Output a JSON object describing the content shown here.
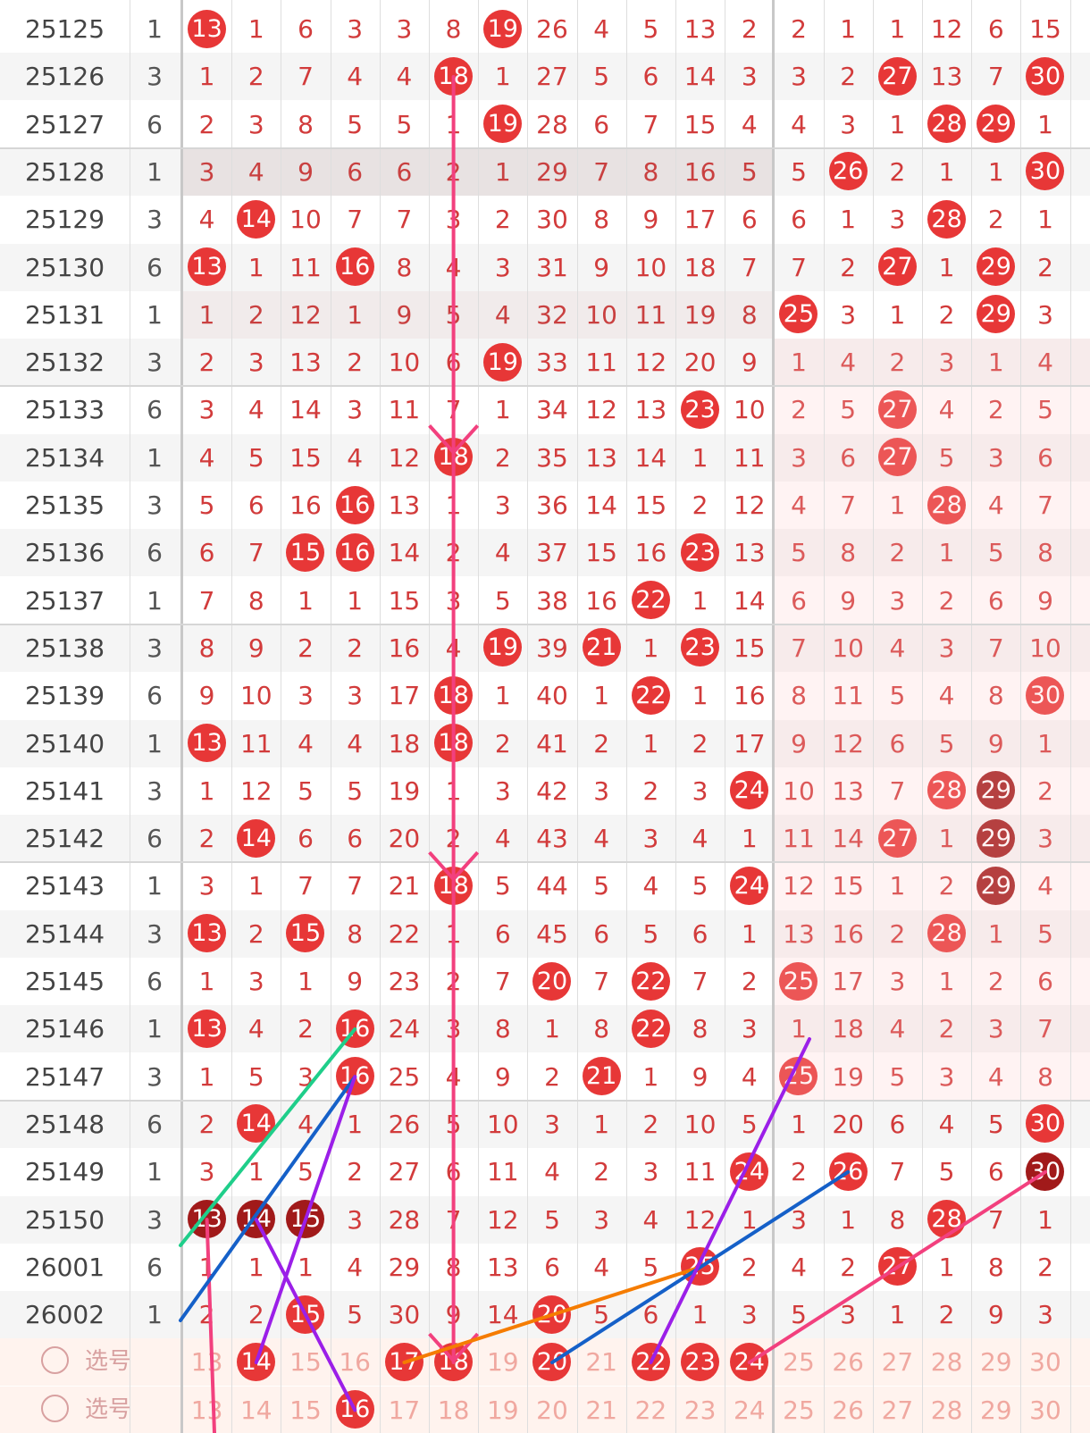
{
  "rows": [
    {
      "id": "25125",
      "group": "1",
      "cells": [
        "13",
        "1",
        "6",
        "3",
        "3",
        "8",
        "19",
        "26",
        "4",
        "5",
        "13",
        "2",
        "2",
        "1",
        "1",
        "12",
        "6",
        "15"
      ],
      "hits": [
        0,
        6
      ],
      "dark": []
    },
    {
      "id": "25126",
      "group": "3",
      "cells": [
        "1",
        "2",
        "7",
        "4",
        "4",
        "18",
        "1",
        "27",
        "5",
        "6",
        "14",
        "3",
        "3",
        "2",
        "27",
        "13",
        "7",
        "30"
      ],
      "hits": [
        5,
        14,
        17
      ],
      "dark": []
    },
    {
      "id": "25127",
      "group": "6",
      "cells": [
        "2",
        "3",
        "8",
        "5",
        "5",
        "1",
        "19",
        "28",
        "6",
        "7",
        "15",
        "4",
        "4",
        "3",
        "1",
        "28",
        "29",
        "1"
      ],
      "hits": [
        6,
        15,
        16
      ],
      "dark": []
    },
    {
      "id": "25128",
      "group": "1",
      "cells": [
        "3",
        "4",
        "9",
        "6",
        "6",
        "2",
        "1",
        "29",
        "7",
        "8",
        "16",
        "5",
        "5",
        "26",
        "2",
        "1",
        "1",
        "30"
      ],
      "hits": [
        13,
        17
      ],
      "dark": []
    },
    {
      "id": "25129",
      "group": "3",
      "cells": [
        "4",
        "14",
        "10",
        "7",
        "7",
        "3",
        "2",
        "30",
        "8",
        "9",
        "17",
        "6",
        "6",
        "1",
        "3",
        "28",
        "2",
        "1"
      ],
      "hits": [
        1,
        15
      ],
      "dark": []
    },
    {
      "id": "25130",
      "group": "6",
      "cells": [
        "13",
        "1",
        "11",
        "16",
        "8",
        "4",
        "3",
        "31",
        "9",
        "10",
        "18",
        "7",
        "7",
        "2",
        "27",
        "1",
        "29",
        "2"
      ],
      "hits": [
        0,
        3,
        14,
        16
      ],
      "dark": []
    },
    {
      "id": "25131",
      "group": "1",
      "cells": [
        "1",
        "2",
        "12",
        "1",
        "9",
        "5",
        "4",
        "32",
        "10",
        "11",
        "19",
        "8",
        "25",
        "3",
        "1",
        "2",
        "29",
        "3"
      ],
      "hits": [
        12,
        16
      ],
      "dark": []
    },
    {
      "id": "25132",
      "group": "3",
      "cells": [
        "2",
        "3",
        "13",
        "2",
        "10",
        "6",
        "19",
        "33",
        "11",
        "12",
        "20",
        "9",
        "1",
        "4",
        "2",
        "3",
        "1",
        "4"
      ],
      "hits": [
        6
      ],
      "dark": []
    },
    {
      "id": "25133",
      "group": "6",
      "cells": [
        "3",
        "4",
        "14",
        "3",
        "11",
        "7",
        "1",
        "34",
        "12",
        "13",
        "23",
        "10",
        "2",
        "5",
        "27",
        "4",
        "2",
        "5"
      ],
      "hits": [
        10,
        14
      ],
      "dark": []
    },
    {
      "id": "25134",
      "group": "1",
      "cells": [
        "4",
        "5",
        "15",
        "4",
        "12",
        "18",
        "2",
        "35",
        "13",
        "14",
        "1",
        "11",
        "3",
        "6",
        "27",
        "5",
        "3",
        "6"
      ],
      "hits": [
        5,
        14
      ],
      "dark": []
    },
    {
      "id": "25135",
      "group": "3",
      "cells": [
        "5",
        "6",
        "16",
        "16",
        "13",
        "1",
        "3",
        "36",
        "14",
        "15",
        "2",
        "12",
        "4",
        "7",
        "1",
        "28",
        "4",
        "7"
      ],
      "hits": [
        3,
        15
      ],
      "dark": []
    },
    {
      "id": "25136",
      "group": "6",
      "cells": [
        "6",
        "7",
        "15",
        "16",
        "14",
        "2",
        "4",
        "37",
        "15",
        "16",
        "23",
        "13",
        "5",
        "8",
        "2",
        "1",
        "5",
        "8"
      ],
      "hits": [
        2,
        3,
        10
      ],
      "dark": []
    },
    {
      "id": "25137",
      "group": "1",
      "cells": [
        "7",
        "8",
        "1",
        "1",
        "15",
        "3",
        "5",
        "38",
        "16",
        "22",
        "1",
        "14",
        "6",
        "9",
        "3",
        "2",
        "6",
        "9"
      ],
      "hits": [
        9
      ],
      "dark": []
    },
    {
      "id": "25138",
      "group": "3",
      "cells": [
        "8",
        "9",
        "2",
        "2",
        "16",
        "4",
        "19",
        "39",
        "21",
        "1",
        "23",
        "15",
        "7",
        "10",
        "4",
        "3",
        "7",
        "10"
      ],
      "hits": [
        6,
        8,
        10
      ],
      "dark": []
    },
    {
      "id": "25139",
      "group": "6",
      "cells": [
        "9",
        "10",
        "3",
        "3",
        "17",
        "18",
        "1",
        "40",
        "1",
        "22",
        "1",
        "16",
        "8",
        "11",
        "5",
        "4",
        "8",
        "30"
      ],
      "hits": [
        5,
        9,
        17
      ],
      "dark": []
    },
    {
      "id": "25140",
      "group": "1",
      "cells": [
        "13",
        "11",
        "4",
        "4",
        "18",
        "18",
        "2",
        "41",
        "2",
        "1",
        "2",
        "17",
        "9",
        "12",
        "6",
        "5",
        "9",
        "1"
      ],
      "hits": [
        0,
        5
      ],
      "dark": []
    },
    {
      "id": "25141",
      "group": "3",
      "cells": [
        "1",
        "12",
        "5",
        "5",
        "19",
        "1",
        "3",
        "42",
        "3",
        "2",
        "3",
        "24",
        "10",
        "13",
        "7",
        "28",
        "29",
        "2"
      ],
      "hits": [
        11,
        15,
        16
      ],
      "dark": [
        16
      ]
    },
    {
      "id": "25142",
      "group": "6",
      "cells": [
        "2",
        "14",
        "6",
        "6",
        "20",
        "2",
        "4",
        "43",
        "4",
        "3",
        "4",
        "1",
        "11",
        "14",
        "27",
        "1",
        "29",
        "3"
      ],
      "hits": [
        1,
        14,
        16
      ],
      "dark": [
        16
      ]
    },
    {
      "id": "25143",
      "group": "1",
      "cells": [
        "3",
        "1",
        "7",
        "7",
        "21",
        "18",
        "5",
        "44",
        "5",
        "4",
        "5",
        "24",
        "12",
        "15",
        "1",
        "2",
        "29",
        "4"
      ],
      "hits": [
        5,
        11,
        16
      ],
      "dark": [
        16
      ]
    },
    {
      "id": "25144",
      "group": "3",
      "cells": [
        "13",
        "2",
        "15",
        "8",
        "22",
        "1",
        "6",
        "45",
        "6",
        "5",
        "6",
        "1",
        "13",
        "16",
        "2",
        "28",
        "1",
        "5"
      ],
      "hits": [
        0,
        2,
        15
      ],
      "dark": []
    },
    {
      "id": "25145",
      "group": "6",
      "cells": [
        "1",
        "3",
        "1",
        "9",
        "23",
        "2",
        "7",
        "20",
        "7",
        "22",
        "7",
        "2",
        "25",
        "17",
        "3",
        "1",
        "2",
        "6"
      ],
      "hits": [
        7,
        9,
        12
      ],
      "dark": []
    },
    {
      "id": "25146",
      "group": "1",
      "cells": [
        "13",
        "4",
        "2",
        "16",
        "24",
        "3",
        "8",
        "1",
        "8",
        "22",
        "8",
        "3",
        "1",
        "18",
        "4",
        "2",
        "3",
        "7"
      ],
      "hits": [
        0,
        3,
        9
      ],
      "dark": []
    },
    {
      "id": "25147",
      "group": "3",
      "cells": [
        "1",
        "5",
        "3",
        "16",
        "25",
        "4",
        "9",
        "2",
        "21",
        "1",
        "9",
        "4",
        "25",
        "19",
        "5",
        "3",
        "4",
        "8"
      ],
      "hits": [
        3,
        8,
        12
      ],
      "dark": []
    },
    {
      "id": "25148",
      "group": "6",
      "cells": [
        "2",
        "14",
        "4",
        "1",
        "26",
        "5",
        "10",
        "3",
        "1",
        "2",
        "10",
        "5",
        "1",
        "20",
        "6",
        "4",
        "5",
        "30"
      ],
      "hits": [
        1,
        17
      ],
      "dark": []
    },
    {
      "id": "25149",
      "group": "1",
      "cells": [
        "3",
        "1",
        "5",
        "2",
        "27",
        "6",
        "11",
        "4",
        "2",
        "3",
        "11",
        "24",
        "2",
        "26",
        "7",
        "5",
        "6",
        "30"
      ],
      "hits": [
        11,
        13,
        17
      ],
      "dark": [
        17
      ]
    },
    {
      "id": "25150",
      "group": "3",
      "cells": [
        "13",
        "14",
        "15",
        "3",
        "28",
        "7",
        "12",
        "5",
        "3",
        "4",
        "12",
        "1",
        "3",
        "1",
        "8",
        "28",
        "7",
        "1"
      ],
      "hits": [
        0,
        1,
        2,
        15
      ],
      "dark": [
        0,
        1,
        2
      ]
    },
    {
      "id": "26001",
      "group": "6",
      "cells": [
        "1",
        "1",
        "1",
        "4",
        "29",
        "8",
        "13",
        "6",
        "4",
        "5",
        "25",
        "2",
        "4",
        "2",
        "27",
        "1",
        "8",
        "2"
      ],
      "hits": [
        10,
        14
      ],
      "dark": []
    },
    {
      "id": "26002",
      "group": "1",
      "cells": [
        "2",
        "2",
        "15",
        "5",
        "30",
        "9",
        "14",
        "20",
        "5",
        "6",
        "1",
        "3",
        "5",
        "3",
        "1",
        "2",
        "9",
        "3"
      ],
      "hits": [
        2,
        7
      ],
      "dark": []
    }
  ],
  "pick_rows": [
    {
      "label": "选号",
      "cells": [
        "13",
        "14",
        "15",
        "16",
        "17",
        "18",
        "19",
        "20",
        "21",
        "22",
        "23",
        "24",
        "25",
        "26",
        "27",
        "28",
        "29",
        "30"
      ],
      "hits": [
        1,
        4,
        5,
        7,
        9,
        10,
        11
      ]
    },
    {
      "label": "选号",
      "cells": [
        "13",
        "14",
        "15",
        "16",
        "17",
        "18",
        "19",
        "20",
        "21",
        "22",
        "23",
        "24",
        "25",
        "26",
        "27",
        "28",
        "29",
        "30"
      ],
      "hits": [
        3
      ]
    }
  ],
  "colors": {
    "ball": "#e73737",
    "ball_dark": "#a11a1a",
    "line_pink": "#f2407e",
    "line_green": "#1fce8a",
    "line_blue": "#1560c8",
    "line_purple": "#9b1fe8",
    "line_orange": "#f57c00"
  }
}
